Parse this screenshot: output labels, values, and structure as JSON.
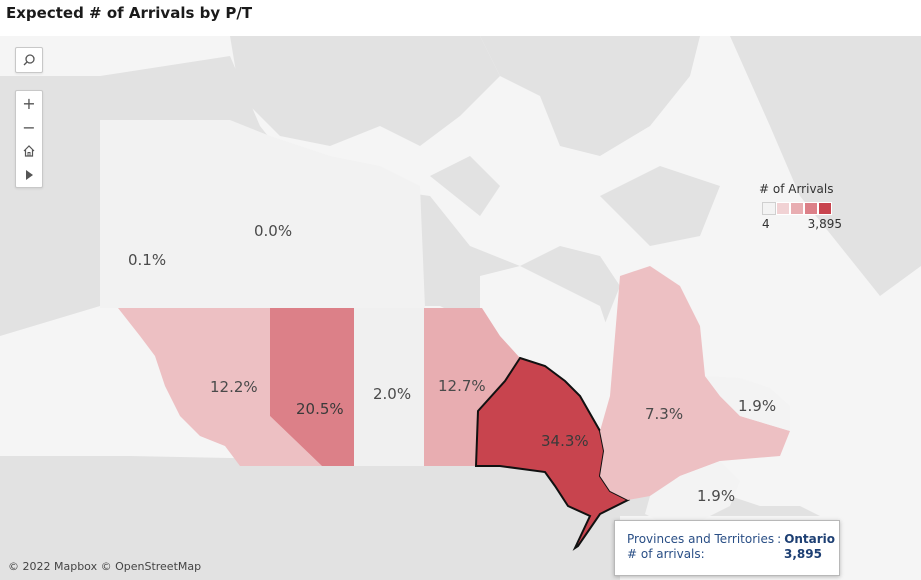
{
  "title": "Expected # of Arrivals by P/T",
  "map_labels": {
    "yukon": "0.1%",
    "nwt": "0.0%",
    "bc": "12.2%",
    "alberta": "20.5%",
    "saskatchewan": "2.0%",
    "manitoba": "12.7%",
    "ontario": "34.3%",
    "quebec": "7.3%",
    "nl": "1.9%",
    "maritimes": "1.9%"
  },
  "legend": {
    "title": "# of Arrivals",
    "min": "4",
    "max": "3,895",
    "colors": [
      "#f3f3f3",
      "#f1d2d4",
      "#e8adb1",
      "#dc8088",
      "#c8444e"
    ]
  },
  "tooltip": {
    "field_label": "Provinces and Territories",
    "sep": ":",
    "field_value": "Ontario",
    "measure_label": "# of arrivals:",
    "measure_value": "3,895"
  },
  "controls": {
    "search_icon": "search-icon",
    "zoom_in": "+",
    "zoom_out": "−",
    "home_icon": "home-icon",
    "expand_icon": "play-icon"
  },
  "attribution": "© 2022 Mapbox  © OpenStreetMap",
  "colors": {
    "ontario": "#c8444e",
    "alberta": "#dc8088",
    "mid": "#e8adb1",
    "light": "#edc0c3",
    "pale": "#f1f1f1",
    "land": "#e4e4e4",
    "water": "#f4f4f4"
  }
}
